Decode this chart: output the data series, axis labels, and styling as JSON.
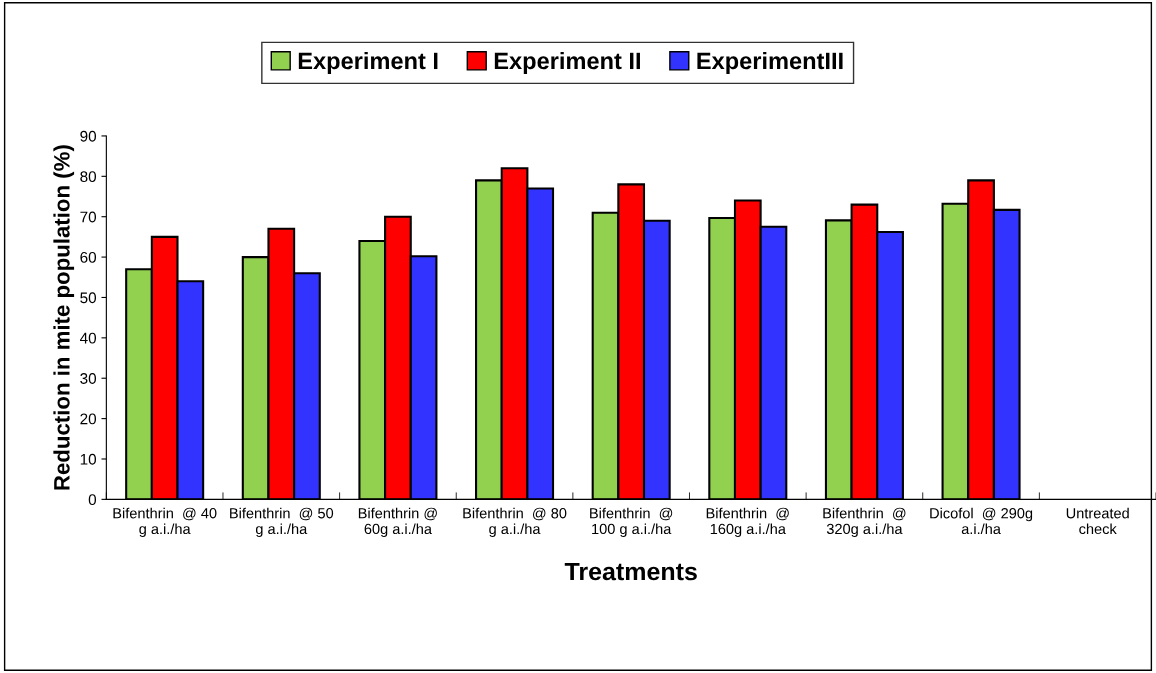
{
  "chart_data": {
    "type": "bar",
    "xlabel": "Treatments",
    "ylabel": "Reduction in mite population (%)",
    "categories": [
      "Bifenthrin  @ 40\ng a.i./ha",
      "Bifenthrin  @ 50\ng a.i./ha",
      "Bifenthrin @\n60g a.i./ha",
      "Bifenthrin  @ 80\ng a.i./ha",
      "Bifenthrin  @\n100 g a.i./ha",
      "Bifenthrin  @\n160g a.i./ha",
      "Bifenthrin  @\n320g a.i./ha",
      "Dicofol  @ 290g\na.i./ha",
      "Untreated\ncheck"
    ],
    "series": [
      {
        "name": "Experiment I",
        "color": "#92d050",
        "values": [
          57,
          60,
          64,
          79,
          71,
          69.7,
          69.1,
          73.2,
          null
        ]
      },
      {
        "name": "Experiment II",
        "color": "#ff0000",
        "values": [
          65,
          67,
          70,
          82,
          78,
          74,
          73,
          79,
          null
        ]
      },
      {
        "name": "ExperimentIII",
        "color": "#3333ff",
        "values": [
          54,
          56,
          60.2,
          77,
          69,
          67.5,
          66.2,
          71.7,
          null
        ]
      }
    ],
    "ylim": [
      0,
      90
    ],
    "yticks": [
      0,
      10,
      20,
      30,
      40,
      50,
      60,
      70,
      80,
      90
    ],
    "grid": false,
    "legend": "top"
  }
}
